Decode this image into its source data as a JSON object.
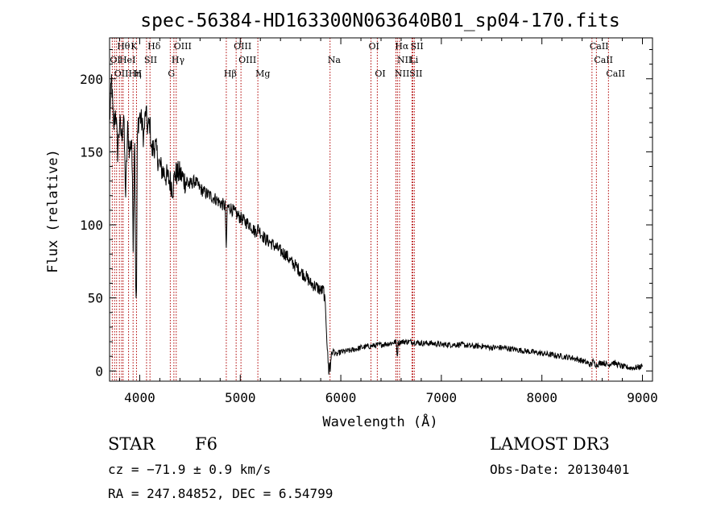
{
  "chart_data": {
    "type": "line",
    "title": "spec-56384-HD163300N063640B01_sp04-170.fits",
    "xlabel": "Wavelength (Å)",
    "ylabel": "Flux (relative)",
    "xlim": [
      3700,
      9100
    ],
    "ylim": [
      -7,
      228
    ],
    "x_ticks": [
      4000,
      5000,
      6000,
      7000,
      8000,
      9000
    ],
    "y_ticks": [
      0,
      50,
      100,
      150,
      200
    ],
    "grid": false,
    "series": [
      {
        "x": [
          3700,
          3720,
          3740,
          3760,
          3780,
          3800,
          3820,
          3840,
          3860,
          3880,
          3900,
          3920,
          3935,
          3950,
          3960,
          3968,
          3975,
          3985,
          4000,
          4020,
          4040,
          4060,
          4080,
          4100,
          4120,
          4150,
          4200,
          4250,
          4300,
          4330,
          4350,
          4400,
          4450,
          4500,
          4550,
          4600,
          4650,
          4700,
          4750,
          4800,
          4850,
          4861,
          4870,
          4900,
          4950,
          5000,
          5050,
          5100,
          5150,
          5180,
          5200,
          5250,
          5300,
          5350,
          5400,
          5450,
          5500,
          5550,
          5600,
          5650,
          5700,
          5750,
          5800,
          5830,
          5850,
          5870,
          5880,
          5890,
          5895,
          5900,
          5910,
          5930,
          5950,
          6000,
          6100,
          6200,
          6300,
          6400,
          6500,
          6550,
          6563,
          6570,
          6600,
          6700,
          6800,
          6900,
          7000,
          7100,
          7200,
          7300,
          7400,
          7500,
          7600,
          7700,
          7800,
          7900,
          8000,
          8100,
          8200,
          8300,
          8400,
          8498,
          8500,
          8542,
          8600,
          8662,
          8700,
          8800,
          8900,
          9000
        ],
        "y": [
          170,
          200,
          165,
          180,
          150,
          170,
          160,
          175,
          120,
          165,
          150,
          160,
          90,
          165,
          60,
          50,
          150,
          170,
          175,
          170,
          160,
          178,
          165,
          170,
          150,
          155,
          140,
          135,
          130,
          125,
          135,
          135,
          130,
          128,
          130,
          125,
          122,
          120,
          118,
          115,
          113,
          80,
          112,
          112,
          108,
          105,
          102,
          100,
          95,
          98,
          95,
          90,
          88,
          85,
          82,
          80,
          75,
          72,
          68,
          65,
          60,
          58,
          55,
          55,
          40,
          10,
          0,
          5,
          0,
          8,
          12,
          14,
          11,
          13,
          14,
          16,
          17,
          18,
          19,
          20,
          10,
          19,
          20,
          20,
          19,
          19,
          18,
          18,
          18,
          17,
          17,
          16,
          16,
          15,
          14,
          13,
          12,
          11,
          10,
          9,
          7,
          4,
          7,
          4,
          6,
          4,
          6,
          3,
          2,
          3
        ]
      }
    ],
    "line_groups": [
      {
        "row": 1,
        "labels": [
          {
            "text": "Hθ",
            "x": 3798
          },
          {
            "text": "K",
            "x": 3934
          },
          {
            "text": "Hδ",
            "x": 4102
          },
          {
            "text": "OIII",
            "x": 4363
          },
          {
            "text": "OIII",
            "x": 4959
          },
          {
            "text": "OI",
            "x": 6300
          },
          {
            "text": "Hα",
            "x": 6563
          },
          {
            "text": "SII",
            "x": 6716
          },
          {
            "text": "CaII",
            "x": 8498
          }
        ]
      },
      {
        "row": 2,
        "labels": [
          {
            "text": "OI",
            "x": 3727
          },
          {
            "text": "HeI",
            "x": 3820
          },
          {
            "text": "SII",
            "x": 4068
          },
          {
            "text": "Hγ",
            "x": 4340
          },
          {
            "text": "OIII",
            "x": 5007
          },
          {
            "text": "Na",
            "x": 5893
          },
          {
            "text": "NII",
            "x": 6584
          },
          {
            "text": "Li",
            "x": 6708
          },
          {
            "text": "CaII",
            "x": 8542
          }
        ]
      },
      {
        "row": 3,
        "labels": [
          {
            "text": "OIIHη",
            "x": 3770
          },
          {
            "text": "H",
            "x": 3968
          },
          {
            "text": "G",
            "x": 4304
          },
          {
            "text": "Hβ",
            "x": 4861
          },
          {
            "text": "Mg",
            "x": 5175
          },
          {
            "text": "OI",
            "x": 6363
          },
          {
            "text": "NIISII",
            "x": 6560
          },
          {
            "text": "CaII",
            "x": 8662
          }
        ]
      }
    ],
    "line_positions": [
      3727,
      3750,
      3770,
      3798,
      3820,
      3835,
      3889,
      3934,
      3968,
      4068,
      4102,
      4304,
      4340,
      4363,
      4861,
      4959,
      5007,
      5175,
      5893,
      6300,
      6363,
      6548,
      6563,
      6584,
      6708,
      6716,
      6731,
      8498,
      8542,
      8662
    ]
  },
  "info": {
    "class_label": "STAR",
    "subclass_label": "F6",
    "cz_text": "cz = −71.9 ± 0.9 km/s",
    "radec_text": "RA = 247.84852, DEC =   6.54799",
    "survey_text": "LAMOST DR3",
    "obs_date_text": "Obs-Date: 20130401"
  },
  "colors": {
    "spectrum": "#000000",
    "line_markers": "#b00000",
    "axes": "#000000"
  }
}
